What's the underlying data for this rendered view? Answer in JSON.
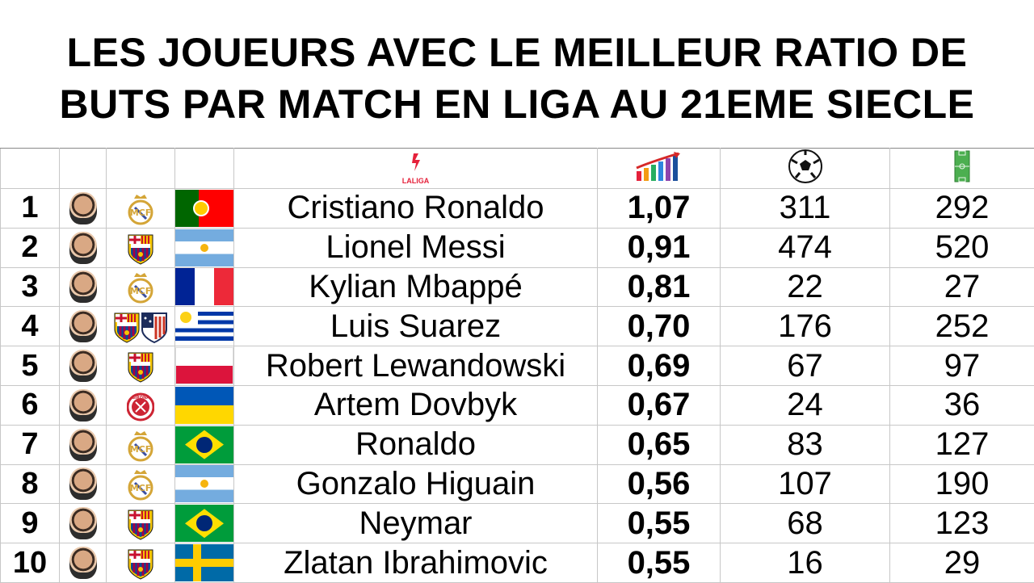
{
  "title": {
    "line1": "LES JOUEURS AVEC LE MEILLEUR RATIO DE",
    "line2": "BUTS PAR MATCH EN LIGA AU 21EME SIECLE"
  },
  "header": {
    "league_label": "LALIGA",
    "icons": [
      "chart-icon",
      "football-icon",
      "pitch-icon"
    ]
  },
  "colors": {
    "laliga_red": "#e5213b",
    "real_madrid_gold": "#d4a537",
    "barca_blue": "#004d98",
    "barca_red": "#a50044"
  },
  "rows": [
    {
      "rank": "1",
      "name": "Cristiano Ronaldo",
      "ratio": "1,07",
      "goals": "311",
      "matches": "292",
      "clubs": [
        "real-madrid"
      ],
      "flag": "pt"
    },
    {
      "rank": "2",
      "name": "Lionel Messi",
      "ratio": "0,91",
      "goals": "474",
      "matches": "520",
      "clubs": [
        "barcelona"
      ],
      "flag": "ar"
    },
    {
      "rank": "3",
      "name": "Kylian Mbappé",
      "ratio": "0,81",
      "goals": "22",
      "matches": "27",
      "clubs": [
        "real-madrid"
      ],
      "flag": "fr"
    },
    {
      "rank": "4",
      "name": "Luis Suarez",
      "ratio": "0,70",
      "goals": "176",
      "matches": "252",
      "clubs": [
        "barcelona",
        "atletico-madrid"
      ],
      "flag": "uy"
    },
    {
      "rank": "5",
      "name": "Robert Lewandowski",
      "ratio": "0,69",
      "goals": "67",
      "matches": "97",
      "clubs": [
        "barcelona"
      ],
      "flag": "pl"
    },
    {
      "rank": "6",
      "name": "Artem Dovbyk",
      "ratio": "0,67",
      "goals": "24",
      "matches": "36",
      "clubs": [
        "girona"
      ],
      "flag": "ua"
    },
    {
      "rank": "7",
      "name": "Ronaldo",
      "ratio": "0,65",
      "goals": "83",
      "matches": "127",
      "clubs": [
        "real-madrid"
      ],
      "flag": "br"
    },
    {
      "rank": "8",
      "name": "Gonzalo Higuain",
      "ratio": "0,56",
      "goals": "107",
      "matches": "190",
      "clubs": [
        "real-madrid"
      ],
      "flag": "ar"
    },
    {
      "rank": "9",
      "name": "Neymar",
      "ratio": "0,55",
      "goals": "68",
      "matches": "123",
      "clubs": [
        "barcelona"
      ],
      "flag": "br"
    },
    {
      "rank": "10",
      "name": "Zlatan Ibrahimovic",
      "ratio": "0,55",
      "goals": "16",
      "matches": "29",
      "clubs": [
        "barcelona"
      ],
      "flag": "se"
    }
  ]
}
